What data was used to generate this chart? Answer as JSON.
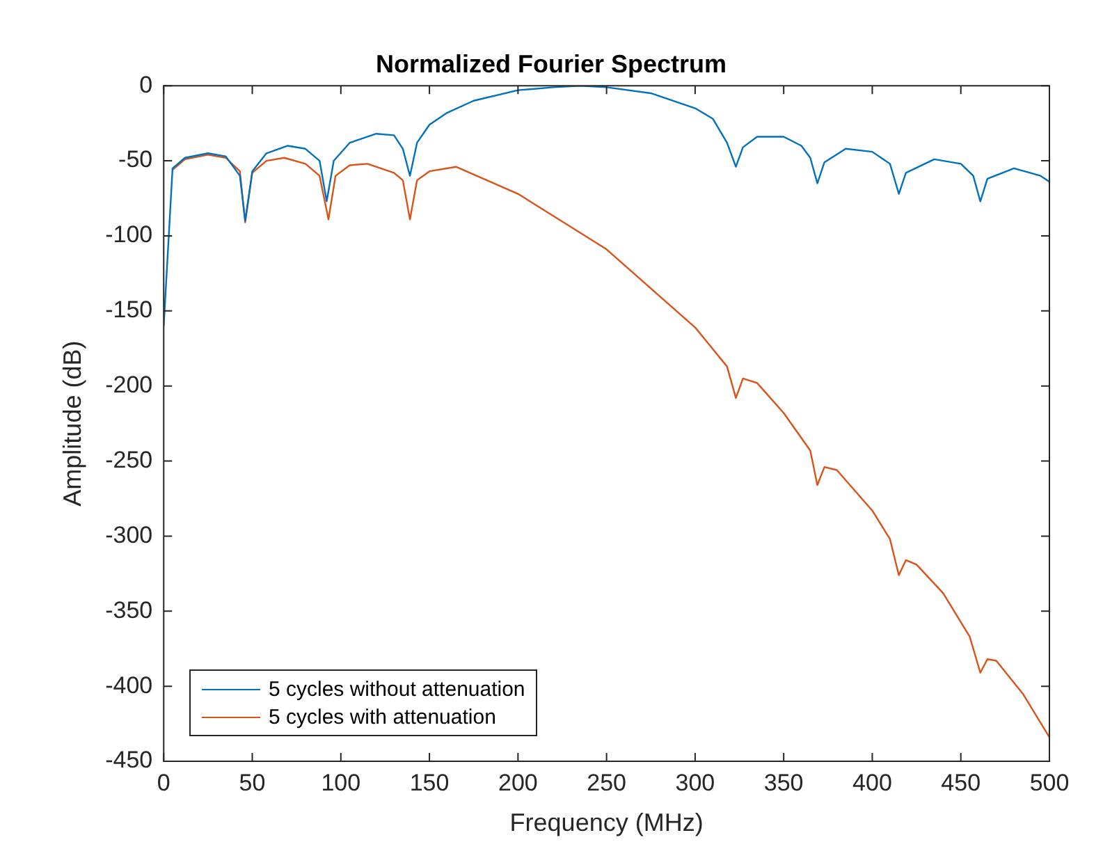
{
  "chart_data": {
    "type": "line",
    "title": "Normalized Fourier Spectrum",
    "xlabel": "Frequency (MHz)",
    "ylabel": "Amplitude (dB)",
    "xlim": [
      0,
      500
    ],
    "xticks": [
      0,
      50,
      100,
      150,
      200,
      250,
      300,
      350,
      400,
      450,
      500
    ],
    "ylim": [
      -450,
      0
    ],
    "yticks": [
      -450,
      -400,
      -350,
      -300,
      -250,
      -200,
      -150,
      -100,
      -50,
      0
    ],
    "grid": false,
    "legend": "bottom left",
    "marker": "none",
    "line_style": "solid",
    "series": [
      {
        "name": "5 cycles without attenuation",
        "color": "#0072bd",
        "x": [
          0,
          5,
          12,
          25,
          35,
          43,
          46,
          50,
          58,
          70,
          80,
          88,
          92,
          96,
          105,
          120,
          130,
          135,
          139,
          143,
          150,
          160,
          175,
          200,
          220,
          235,
          250,
          275,
          300,
          310,
          318,
          323,
          327,
          335,
          350,
          360,
          365,
          369,
          373,
          385,
          400,
          410,
          415,
          419,
          435,
          450,
          457,
          461,
          465,
          480,
          495,
          500
        ],
        "values": [
          -160,
          -55,
          -48,
          -45,
          -47,
          -60,
          -90,
          -57,
          -45,
          -40,
          -42,
          -50,
          -77,
          -50,
          -38,
          -32,
          -33,
          -42,
          -60,
          -38,
          -26,
          -18,
          -10,
          -3,
          -1,
          0,
          -1,
          -5,
          -15,
          -22,
          -38,
          -54,
          -41,
          -34,
          -34,
          -40,
          -48,
          -65,
          -51,
          -42,
          -44,
          -52,
          -72,
          -58,
          -49,
          -52,
          -60,
          -77,
          -62,
          -55,
          -60,
          -64
        ]
      },
      {
        "name": "5 cycles with attenuation",
        "color": "#d95319",
        "x": [
          5,
          12,
          25,
          35,
          43,
          46,
          50,
          58,
          68,
          80,
          88,
          93,
          97,
          105,
          115,
          130,
          135,
          139,
          143,
          150,
          165,
          200,
          250,
          300,
          318,
          323,
          327,
          335,
          350,
          365,
          369,
          373,
          380,
          400,
          410,
          415,
          419,
          425,
          440,
          455,
          461,
          465,
          470,
          485,
          500
        ],
        "values": [
          -56,
          -49,
          -46,
          -48,
          -57,
          -91,
          -58,
          -50,
          -48,
          -52,
          -60,
          -89,
          -60,
          -53,
          -52,
          -58,
          -63,
          -89,
          -63,
          -57,
          -54,
          -72,
          -109,
          -161,
          -187,
          -208,
          -195,
          -198,
          -218,
          -243,
          -266,
          -254,
          -256,
          -283,
          -302,
          -326,
          -316,
          -319,
          -338,
          -367,
          -391,
          -382,
          -383,
          -405,
          -434
        ]
      }
    ]
  }
}
